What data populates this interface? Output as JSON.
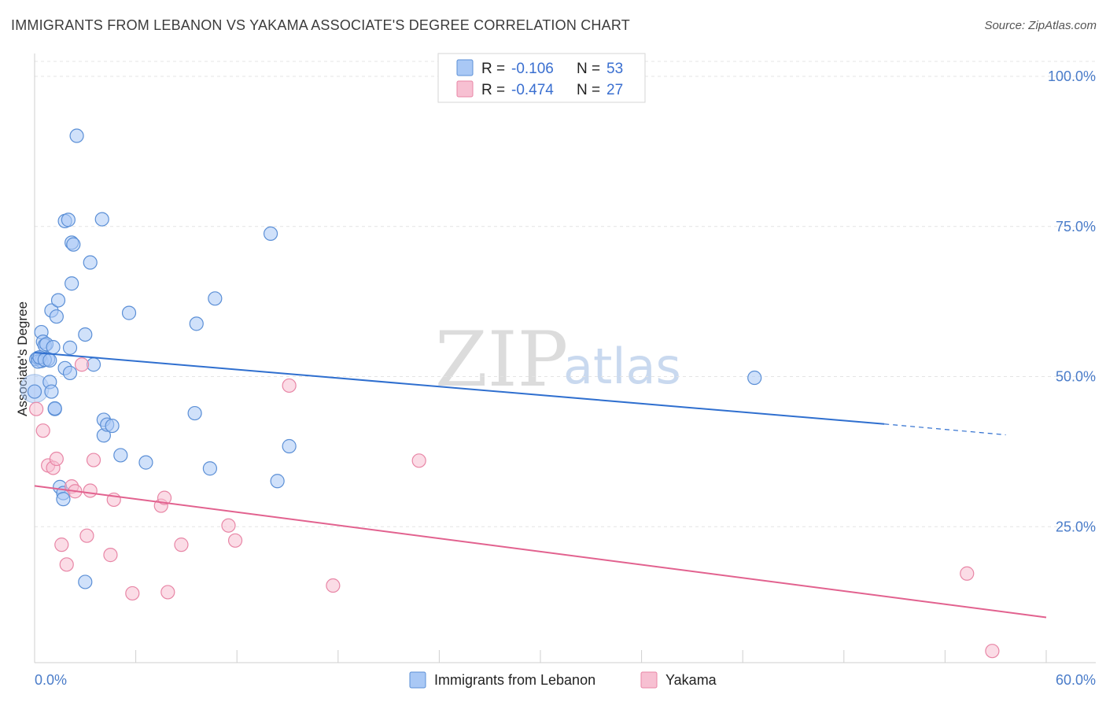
{
  "title": "IMMIGRANTS FROM LEBANON VS YAKAMA ASSOCIATE'S DEGREE CORRELATION CHART",
  "source": "Source: ZipAtlas.com",
  "watermark": {
    "zip": "ZIP",
    "atlas": "atlas"
  },
  "legend": {
    "r_label": "R =",
    "n_label": "N =",
    "rows": [
      {
        "r": "-0.106",
        "n": "53",
        "color": "#a9c8f5",
        "border": "#5b8fd6"
      },
      {
        "r": "-0.474",
        "n": "27",
        "color": "#f7c0d2",
        "border": "#e886a6"
      }
    ]
  },
  "chart_data": {
    "type": "scatter",
    "title": "IMMIGRANTS FROM LEBANON VS YAKAMA ASSOCIATE'S DEGREE CORRELATION CHART",
    "xlabel": "",
    "ylabel": "Associate's Degree",
    "xlim": [
      0,
      60
    ],
    "ylim": [
      0,
      100
    ],
    "x_ticks": [
      "0.0%",
      "60.0%"
    ],
    "y_ticks": [
      "100.0%",
      "75.0%",
      "50.0%",
      "25.0%"
    ],
    "y_tick_values": [
      100,
      75,
      50,
      25
    ],
    "grid": true,
    "legend_position": "top-center",
    "series": [
      {
        "name": "Immigrants from Lebanon",
        "color": "#a9c8f5",
        "stroke": "#5b8fd6",
        "line_color": "#2f6fcf",
        "trend": {
          "x": [
            0,
            50.4
          ],
          "y": [
            54.0,
            42.1
          ],
          "dashed_to": [
            57.6,
            40.3
          ]
        },
        "points": [
          [
            0.0,
            47.5
          ],
          [
            0.1,
            52.9
          ],
          [
            0.2,
            53.1
          ],
          [
            0.4,
            57.4
          ],
          [
            0.4,
            52.6
          ],
          [
            0.5,
            55.8
          ],
          [
            0.6,
            55.2
          ],
          [
            0.7,
            55.4
          ],
          [
            0.8,
            52.9
          ],
          [
            0.9,
            49.1
          ],
          [
            1.0,
            47.5
          ],
          [
            1.0,
            61.0
          ],
          [
            1.1,
            54.9
          ],
          [
            1.2,
            44.6
          ],
          [
            1.2,
            44.7
          ],
          [
            1.3,
            60.0
          ],
          [
            1.4,
            62.7
          ],
          [
            1.5,
            31.6
          ],
          [
            1.7,
            30.6
          ],
          [
            1.7,
            29.6
          ],
          [
            1.8,
            51.4
          ],
          [
            1.8,
            75.9
          ],
          [
            2.0,
            76.1
          ],
          [
            2.1,
            54.8
          ],
          [
            2.1,
            50.6
          ],
          [
            2.2,
            72.3
          ],
          [
            2.2,
            65.5
          ],
          [
            2.3,
            72.0
          ],
          [
            2.5,
            90.1
          ],
          [
            3.0,
            57.0
          ],
          [
            3.0,
            15.8
          ],
          [
            3.3,
            69.0
          ],
          [
            3.5,
            52.0
          ],
          [
            4.0,
            76.2
          ],
          [
            4.1,
            42.8
          ],
          [
            4.1,
            40.2
          ],
          [
            4.3,
            42.0
          ],
          [
            4.6,
            41.8
          ],
          [
            5.1,
            36.9
          ],
          [
            5.6,
            60.6
          ],
          [
            6.6,
            35.7
          ],
          [
            9.5,
            43.9
          ],
          [
            9.6,
            58.8
          ],
          [
            10.4,
            34.7
          ],
          [
            10.7,
            63.0
          ],
          [
            14.0,
            73.8
          ],
          [
            14.4,
            32.6
          ],
          [
            15.1,
            38.4
          ],
          [
            42.7,
            49.8
          ],
          [
            0.2,
            52.5
          ],
          [
            0.3,
            53.2
          ],
          [
            0.6,
            52.8
          ],
          [
            0.9,
            52.7
          ]
        ]
      },
      {
        "name": "Yakama",
        "color": "#f7c0d2",
        "stroke": "#e886a6",
        "line_color": "#e2628f",
        "trend": {
          "x": [
            0,
            60
          ],
          "y": [
            31.8,
            9.9
          ]
        },
        "points": [
          [
            0.1,
            44.6
          ],
          [
            0.5,
            41.0
          ],
          [
            0.8,
            35.2
          ],
          [
            1.1,
            34.8
          ],
          [
            1.3,
            36.3
          ],
          [
            1.6,
            22.0
          ],
          [
            1.9,
            18.7
          ],
          [
            2.2,
            31.7
          ],
          [
            2.4,
            30.9
          ],
          [
            2.8,
            52.0
          ],
          [
            3.1,
            23.5
          ],
          [
            3.3,
            31.0
          ],
          [
            3.5,
            36.1
          ],
          [
            4.5,
            20.3
          ],
          [
            4.7,
            29.5
          ],
          [
            5.8,
            13.9
          ],
          [
            7.5,
            28.5
          ],
          [
            7.7,
            29.8
          ],
          [
            7.9,
            14.1
          ],
          [
            8.7,
            22.0
          ],
          [
            11.5,
            25.2
          ],
          [
            11.9,
            22.7
          ],
          [
            15.1,
            48.5
          ],
          [
            17.7,
            15.2
          ],
          [
            22.8,
            36.0
          ],
          [
            55.3,
            17.2
          ],
          [
            56.8,
            4.3
          ]
        ]
      }
    ]
  }
}
